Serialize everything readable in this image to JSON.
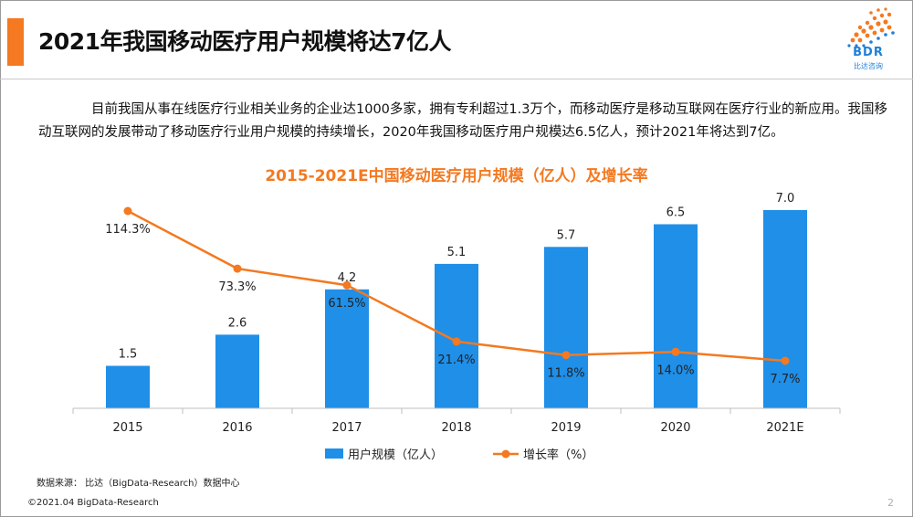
{
  "header": {
    "title": "2021年我国移动医疗用户规模将达7亿人"
  },
  "logo": {
    "text": "BDR",
    "subtext": "比达咨询"
  },
  "paragraph": "目前我国从事在线医疗行业相关业务的企业达1000多家，拥有专利超过1.3万个，而移动医疗是移动互联网在医疗行业的新应用。我国移动互联网的发展带动了移动医疗行业用户规模的持续增长，2020年我国移动医疗用户规模达6.5亿人，预计2021年将达到7亿。",
  "chart_data": {
    "type": "bar",
    "title": "2015-2021E中国移动医疗用户规模（亿人）及增长率",
    "categories": [
      "2015",
      "2016",
      "2017",
      "2018",
      "2019",
      "2020",
      "2021E"
    ],
    "series": [
      {
        "name": "用户规模（亿人）",
        "type": "bar",
        "values": [
          1.5,
          2.6,
          4.2,
          5.1,
          5.7,
          6.5,
          7.0
        ],
        "labels": [
          "1.5",
          "2.6",
          "4.2",
          "5.1",
          "5.7",
          "6.5",
          "7.0"
        ],
        "color": "#1f8fe8"
      },
      {
        "name": "增长率（%）",
        "type": "line",
        "values": [
          114.3,
          73.3,
          61.5,
          21.4,
          11.8,
          14.0,
          7.7
        ],
        "labels": [
          "114.3%",
          "73.3%",
          "61.5%",
          "21.4%",
          "11.8%",
          "14.0%",
          "7.7%"
        ],
        "color": "#f47920"
      }
    ],
    "bar_ylim": [
      0,
      7.0
    ],
    "line_ylim": [
      0,
      120
    ],
    "legend_position": "bottom",
    "grid": false
  },
  "footer": {
    "source": "数据来源： 比达（BigData-Research）数据中心",
    "copyright": "©2021.04 BigData-Research",
    "page_number": "2"
  },
  "colors": {
    "accent": "#f47920",
    "bar": "#1f8fe8",
    "logo": "#1f7fd8"
  }
}
